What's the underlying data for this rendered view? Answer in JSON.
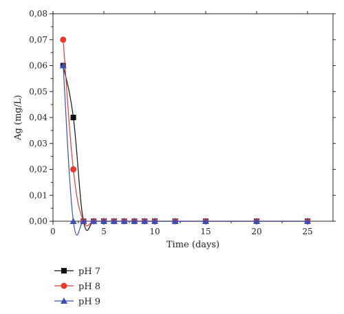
{
  "chart_data": {
    "type": "line",
    "xlabel": "Time (days)",
    "ylabel": "Ag (mg/L)",
    "xlim": [
      0,
      27.5
    ],
    "ylim": [
      0,
      0.08
    ],
    "x_ticks": [
      0,
      5,
      10,
      15,
      20,
      25
    ],
    "x_tick_labels": [
      "0",
      "5",
      "10",
      "15",
      "20",
      "25"
    ],
    "y_ticks": [
      0,
      0.01,
      0.02,
      0.03,
      0.04,
      0.05,
      0.06,
      0.07,
      0.08
    ],
    "y_tick_labels": [
      "0,00",
      "0,01",
      "0,02",
      "0,03",
      "0,04",
      "0,05",
      "0,06",
      "0,07",
      "0,08"
    ],
    "grid": false,
    "legend_position": "below-left",
    "series": [
      {
        "name": "pH 7",
        "color": "#111111",
        "marker": "square",
        "points": [
          [
            1,
            0.06
          ],
          [
            2,
            0.04
          ],
          [
            3,
            0.0
          ],
          [
            4,
            0.0
          ],
          [
            5,
            0.0
          ],
          [
            6,
            0.0
          ],
          [
            7,
            0.0
          ],
          [
            8,
            0.0
          ],
          [
            9,
            0.0
          ],
          [
            10,
            0.0
          ],
          [
            12,
            0.0
          ],
          [
            15,
            0.0
          ],
          [
            20,
            0.0
          ],
          [
            25,
            0.0
          ]
        ]
      },
      {
        "name": "pH 8",
        "color": "#e8392b",
        "marker": "circle",
        "points": [
          [
            1,
            0.07
          ],
          [
            2,
            0.02
          ],
          [
            3,
            0.0
          ],
          [
            4,
            0.0
          ],
          [
            5,
            0.0
          ],
          [
            6,
            0.0
          ],
          [
            7,
            0.0
          ],
          [
            8,
            0.0
          ],
          [
            9,
            0.0
          ],
          [
            10,
            0.0
          ],
          [
            12,
            0.0
          ],
          [
            15,
            0.0
          ],
          [
            20,
            0.0
          ],
          [
            25,
            0.0
          ]
        ]
      },
      {
        "name": "pH 9",
        "color": "#3a4fb5",
        "marker": "triangle",
        "points": [
          [
            1,
            0.06
          ],
          [
            2,
            0.0
          ],
          [
            3,
            0.0
          ],
          [
            4,
            0.0
          ],
          [
            5,
            0.0
          ],
          [
            6,
            0.0
          ],
          [
            7,
            0.0
          ],
          [
            8,
            0.0
          ],
          [
            9,
            0.0
          ],
          [
            10,
            0.0
          ],
          [
            12,
            0.0
          ],
          [
            15,
            0.0
          ],
          [
            20,
            0.0
          ],
          [
            25,
            0.0
          ]
        ]
      }
    ]
  }
}
